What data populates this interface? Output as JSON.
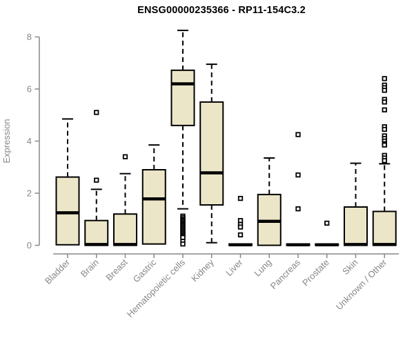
{
  "header": {
    "title": "ENSG00000235366 - RP11-154C3.2"
  },
  "chart_data": {
    "type": "box",
    "title": "ENSG00000235366 - RP11-154C3.2",
    "xlabel": "",
    "ylabel": "Expression",
    "yticks": [
      0,
      2,
      4,
      6,
      8
    ],
    "ylim": [
      0,
      8.4
    ],
    "grid": false,
    "legend": "none",
    "categories": [
      "Bladder",
      "Brain",
      "Breast",
      "Gastric",
      "Hematopoietic cells",
      "Kidney",
      "Liver",
      "Lung",
      "Pancreas",
      "Prostate",
      "Skin",
      "Unknown / Other"
    ],
    "boxes": [
      {
        "category": "Bladder",
        "whisker_low": 0.02,
        "q1": 0.02,
        "median": 1.25,
        "q3": 2.62,
        "whisker_high": 4.85,
        "outliers": []
      },
      {
        "category": "Brain",
        "whisker_low": 0,
        "q1": 0,
        "median": 0.03,
        "q3": 0.95,
        "whisker_high": 2.15,
        "outliers": [
          5.1,
          2.5
        ]
      },
      {
        "category": "Breast",
        "whisker_low": 0,
        "q1": 0,
        "median": 0.03,
        "q3": 1.2,
        "whisker_high": 2.75,
        "outliers": [
          3.4
        ]
      },
      {
        "category": "Gastric",
        "whisker_low": 0.05,
        "q1": 0.05,
        "median": 1.78,
        "q3": 2.9,
        "whisker_high": 3.85,
        "outliers": []
      },
      {
        "category": "Hematopoietic cells",
        "whisker_low": 1.4,
        "q1": 4.6,
        "median": 6.2,
        "q3": 6.72,
        "whisker_high": 8.25,
        "outliers": [
          1.12,
          1.06,
          1.0,
          0.95,
          0.9,
          0.85,
          0.8,
          0.75,
          0.7,
          0.65,
          0.6,
          0.55,
          0.5,
          0.45,
          0.4,
          0.35,
          0.3,
          0.15,
          0.05
        ]
      },
      {
        "category": "Kidney",
        "whisker_low": 0.1,
        "q1": 1.55,
        "median": 2.78,
        "q3": 5.5,
        "whisker_high": 6.95,
        "outliers": []
      },
      {
        "category": "Liver",
        "whisker_low": 0,
        "q1": 0,
        "median": 0.02,
        "q3": 0.05,
        "whisker_high": 0.05,
        "outliers": [
          1.8,
          0.95,
          0.8,
          0.7,
          0.4
        ]
      },
      {
        "category": "Lung",
        "whisker_low": 0,
        "q1": 0,
        "median": 0.92,
        "q3": 1.95,
        "whisker_high": 3.35,
        "outliers": []
      },
      {
        "category": "Pancreas",
        "whisker_low": 0,
        "q1": 0,
        "median": 0.02,
        "q3": 0.05,
        "whisker_high": 0.05,
        "outliers": [
          4.25,
          2.7,
          1.4
        ]
      },
      {
        "category": "Prostate",
        "whisker_low": 0,
        "q1": 0,
        "median": 0.02,
        "q3": 0.05,
        "whisker_high": 0.05,
        "outliers": [
          0.85
        ]
      },
      {
        "category": "Skin",
        "whisker_low": 0,
        "q1": 0,
        "median": 0.03,
        "q3": 1.47,
        "whisker_high": 3.15,
        "outliers": []
      },
      {
        "category": "Unknown / Other",
        "whisker_low": 0,
        "q1": 0,
        "median": 0.03,
        "q3": 1.3,
        "whisker_high": 3.13,
        "outliers": [
          6.4,
          6.15,
          6.05,
          5.95,
          5.6,
          5.5,
          5.2,
          4.55,
          4.45,
          4.2,
          4.1,
          4.0,
          3.9,
          3.85,
          3.45,
          3.35,
          3.25
        ]
      }
    ],
    "colors": {
      "box_fill": "#ece6c8",
      "box_stroke": "#000000",
      "median": "#000000",
      "whisker": "#000000",
      "outlier_stroke": "#000000",
      "outlier_fill": "#ffffff",
      "axis": "#878787",
      "tick_label": "#878787",
      "title": "#000000",
      "background": "#ffffff"
    }
  }
}
